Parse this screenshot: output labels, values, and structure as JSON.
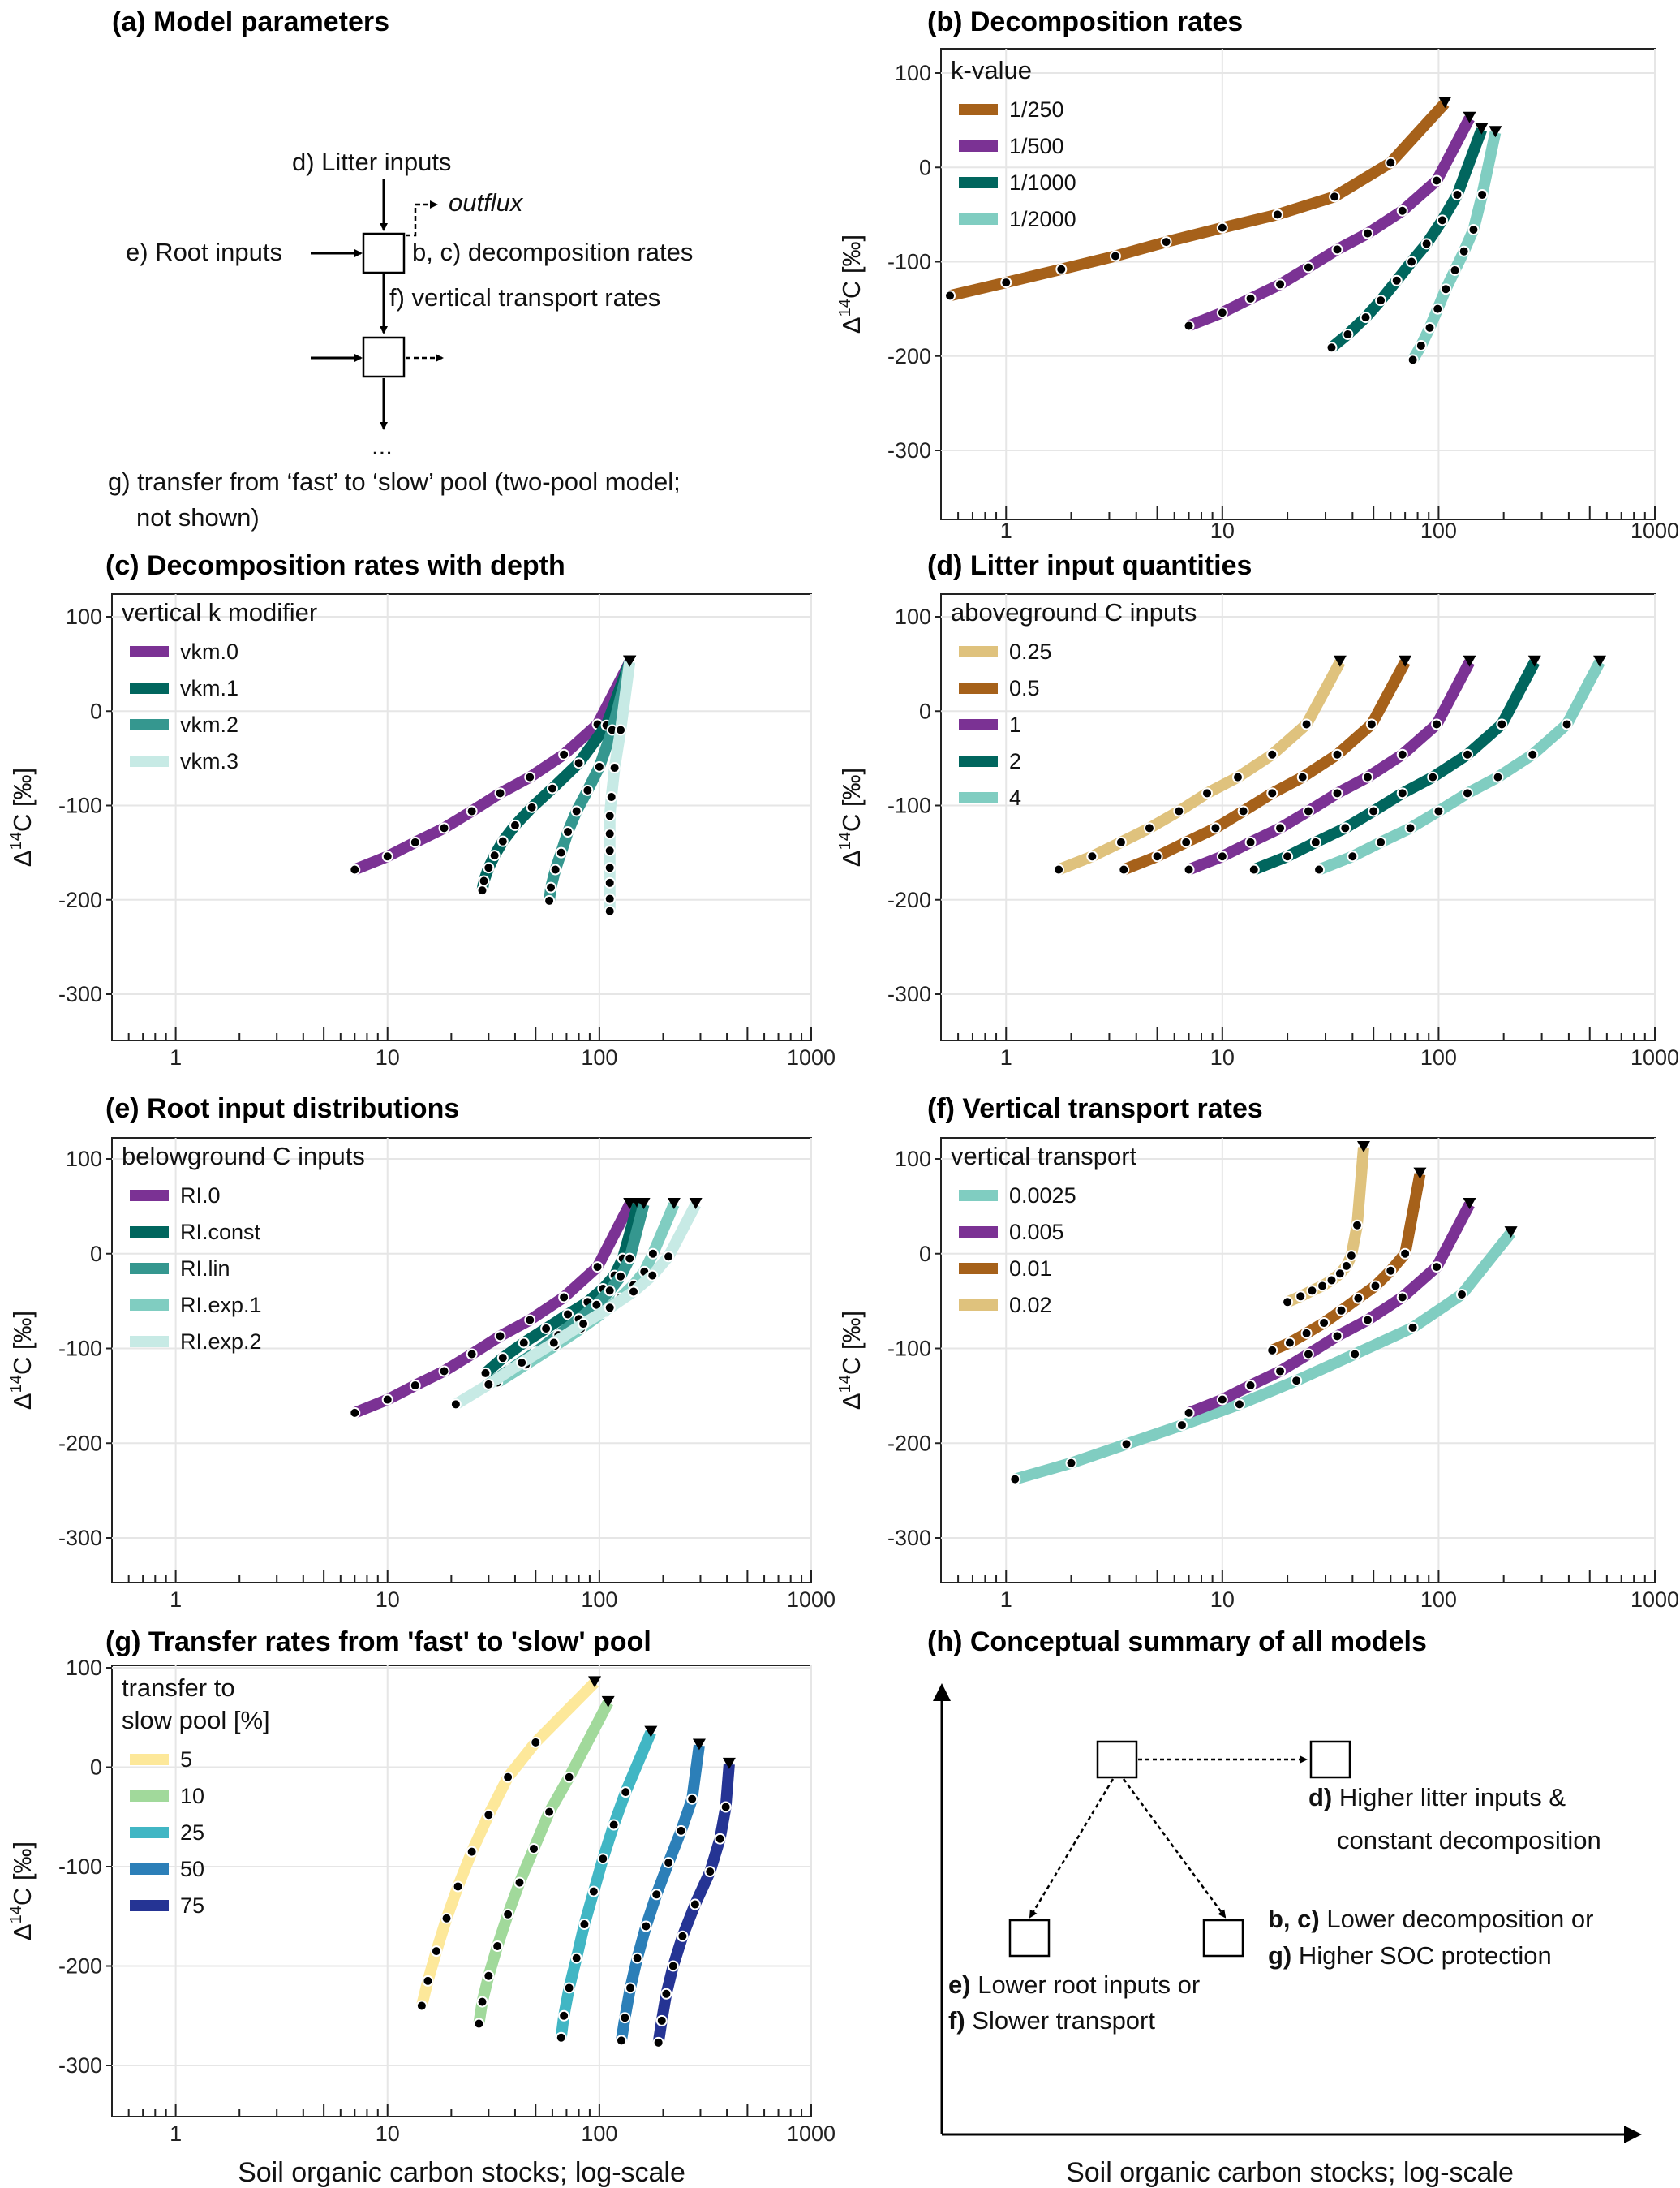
{
  "colors": {
    "brown": "#a6611a",
    "purple": "#7b3294",
    "teal_dark": "#01665e",
    "teal": "#35978f",
    "teal_light": "#80cdc1",
    "very_light": "#c7eae5",
    "tan": "#dfc27d",
    "yellow": "#fde89a",
    "mint": "#a1d99b",
    "cyan": "#41b6c4",
    "blue": "#2c7fb8",
    "navy": "#253494",
    "grid": "#e6e6e6"
  },
  "axis": {
    "xticks": [
      "1",
      "10",
      "100",
      "1000"
    ],
    "yticks": [
      "100",
      "0",
      "-100",
      "-200",
      "-300"
    ],
    "ylabel_main": "Δ",
    "ylabel_sup": "14",
    "ylabel_rest": "C [‰]",
    "xlabel": "Soil organic carbon stocks; log-scale"
  },
  "panel_a": {
    "title": "(a) Model parameters",
    "litter": "d) Litter inputs",
    "outflux": "outflux",
    "root": "e) Root inputs",
    "decomp": "b, c) decomposition rates",
    "transport": "f) vertical transport rates",
    "ellipsis": "...",
    "transfer_1": "g) transfer from ‘fast’ to ‘slow’ pool (two-pool model;",
    "transfer_2": "not shown)"
  },
  "panel_h": {
    "title": "(h) Conceptual summary of all models",
    "d_bold": "d)",
    "d_1": "Higher litter inputs &",
    "d_2": "constant decomposition",
    "bc_bold": "b, c)",
    "bc_text": "Lower decomposition or",
    "g_bold": "g)",
    "g_text": "Higher SOC protection",
    "e_bold": "e)",
    "e_text": "Lower root inputs or",
    "f_bold": "f)",
    "f_text": "Slower transport",
    "xlabel": "Soil organic carbon stocks; log-scale"
  },
  "chart_data": [
    {
      "id": "b",
      "type": "line",
      "title": "(b) Decomposition rates",
      "xlabel": "",
      "ylabel": "Δ14C [‰]",
      "xscale": "log",
      "xlim": [
        0.5,
        1000
      ],
      "ylim": [
        -350,
        110
      ],
      "legend_title": "k-value",
      "legend_placement": "top-left",
      "grid": true,
      "series": [
        {
          "name": "1/250",
          "color": "#a6611a",
          "x": [
            0.55,
            1.0,
            1.8,
            3.2,
            5.5,
            10,
            18,
            33,
            60,
            107
          ],
          "y": [
            -136,
            -122,
            -108,
            -94,
            -79,
            -64,
            -50,
            -31,
            5,
            68
          ]
        },
        {
          "name": "1/500",
          "color": "#7b3294",
          "x": [
            7,
            10,
            13.5,
            18.5,
            25,
            34,
            47,
            68,
            98,
            139
          ],
          "y": [
            -168,
            -154,
            -139,
            -124,
            -106,
            -87,
            -70,
            -46,
            -14,
            52
          ]
        },
        {
          "name": "1/1000",
          "color": "#01665e",
          "x": [
            32,
            38,
            46,
            54,
            64,
            75,
            88,
            104,
            122,
            158
          ],
          "y": [
            -191,
            -177,
            -159,
            -141,
            -120,
            -100,
            -81,
            -56,
            -29,
            40
          ]
        },
        {
          "name": "1/2000",
          "color": "#80cdc1",
          "x": [
            76,
            83,
            91,
            99,
            108,
            119,
            131,
            145,
            159,
            183
          ],
          "y": [
            -204,
            -189,
            -170,
            -150,
            -129,
            -109,
            -89,
            -66,
            -29,
            37
          ]
        }
      ]
    },
    {
      "id": "c",
      "type": "line",
      "title": "(c) Decomposition rates with depth",
      "xlabel": "",
      "ylabel": "Δ14C [‰]",
      "xscale": "log",
      "xlim": [
        0.5,
        1000
      ],
      "ylim": [
        -350,
        110
      ],
      "legend_title": "vertical k modifier",
      "legend_placement": "top-left",
      "grid": true,
      "series": [
        {
          "name": "vkm.0",
          "color": "#7b3294",
          "x": [
            7,
            10,
            13.5,
            18.5,
            25,
            34,
            47,
            68,
            98,
            139
          ],
          "y": [
            -168,
            -154,
            -139,
            -124,
            -106,
            -87,
            -70,
            -46,
            -14,
            52
          ]
        },
        {
          "name": "vkm.1",
          "color": "#01665e",
          "x": [
            28,
            28.5,
            30,
            32,
            35,
            40,
            48,
            60,
            80,
            108,
            139
          ],
          "y": [
            -190,
            -180,
            -166,
            -153,
            -138,
            -121,
            -102,
            -82,
            -55,
            -15,
            52
          ]
        },
        {
          "name": "vkm.2",
          "color": "#35978f",
          "x": [
            58,
            59,
            62,
            66,
            71,
            78,
            88,
            100,
            115,
            139
          ],
          "y": [
            -201,
            -187,
            -168,
            -150,
            -128,
            -106,
            -84,
            -59,
            -20,
            52
          ]
        },
        {
          "name": "vkm.3",
          "color": "#c7eae5",
          "x": [
            112,
            112,
            112,
            112,
            112,
            112,
            112,
            114,
            118,
            126,
            139
          ],
          "y": [
            -212,
            -199,
            -182,
            -166,
            -148,
            -130,
            -111,
            -91,
            -60,
            -20,
            52
          ]
        }
      ]
    },
    {
      "id": "d",
      "type": "line",
      "title": "(d) Litter input quantities",
      "xlabel": "",
      "ylabel": "Δ14C [‰]",
      "xscale": "log",
      "xlim": [
        0.5,
        1000
      ],
      "ylim": [
        -350,
        110
      ],
      "legend_title": "aboveground C inputs",
      "legend_placement": "top-left",
      "grid": true,
      "series": [
        {
          "name": "0.25",
          "color": "#dfc27d",
          "x": [
            1.75,
            2.5,
            3.4,
            4.6,
            6.3,
            8.5,
            11.8,
            17,
            24.5,
            35
          ],
          "y": [
            -168,
            -154,
            -139,
            -124,
            -106,
            -87,
            -70,
            -46,
            -14,
            52
          ]
        },
        {
          "name": "0.5",
          "color": "#a6611a",
          "x": [
            3.5,
            5,
            6.8,
            9.3,
            12.5,
            17,
            23.5,
            34,
            49,
            70
          ],
          "y": [
            -168,
            -154,
            -139,
            -124,
            -106,
            -87,
            -70,
            -46,
            -14,
            52
          ]
        },
        {
          "name": "1",
          "color": "#7b3294",
          "x": [
            7,
            10,
            13.5,
            18.5,
            25,
            34,
            47,
            68,
            98,
            139
          ],
          "y": [
            -168,
            -154,
            -139,
            -124,
            -106,
            -87,
            -70,
            -46,
            -14,
            52
          ]
        },
        {
          "name": "2",
          "color": "#01665e",
          "x": [
            14,
            20,
            27,
            37,
            50,
            68,
            94,
            136,
            196,
            278
          ],
          "y": [
            -168,
            -154,
            -139,
            -124,
            -106,
            -87,
            -70,
            -46,
            -14,
            52
          ]
        },
        {
          "name": "4",
          "color": "#80cdc1",
          "x": [
            28,
            40,
            54,
            74,
            100,
            136,
            188,
            272,
            392,
            556
          ],
          "y": [
            -168,
            -154,
            -139,
            -124,
            -106,
            -87,
            -70,
            -46,
            -14,
            52
          ]
        }
      ]
    },
    {
      "id": "e",
      "type": "line",
      "title": "(e) Root input distributions",
      "xlabel": "",
      "ylabel": "Δ14C [‰]",
      "xscale": "log",
      "xlim": [
        0.5,
        1000
      ],
      "ylim": [
        -350,
        110
      ],
      "legend_title": "belowground C inputs",
      "legend_placement": "top-left",
      "grid": true,
      "series": [
        {
          "name": "RI.0",
          "color": "#7b3294",
          "x": [
            7,
            10,
            13.5,
            18.5,
            25,
            34,
            47,
            68,
            98,
            139
          ],
          "y": [
            -168,
            -154,
            -139,
            -124,
            -106,
            -87,
            -70,
            -46,
            -14,
            52
          ]
        },
        {
          "name": "RI.const",
          "color": "#01665e",
          "x": [
            29,
            35,
            44,
            56,
            71,
            88,
            104,
            118,
            129,
            152
          ],
          "y": [
            -126,
            -110,
            -94,
            -79,
            -64,
            -51,
            -37,
            -23,
            -5,
            52
          ]
        },
        {
          "name": "RI.lin",
          "color": "#35978f",
          "x": [
            29,
            38,
            50,
            64,
            80,
            97,
            112,
            126,
            139,
            162
          ],
          "y": [
            -140,
            -122,
            -104,
            -86,
            -69,
            -54,
            -39,
            -24,
            -5,
            52
          ]
        },
        {
          "name": "RI.exp.1",
          "color": "#80cdc1",
          "x": [
            33,
            45,
            62,
            82,
            103,
            125,
            145,
            163,
            179,
            225
          ],
          "y": [
            -136,
            -117,
            -97,
            -79,
            -63,
            -47,
            -33,
            -19,
            0,
            52
          ]
        },
        {
          "name": "RI.exp.2",
          "color": "#c7eae5",
          "x": [
            21,
            30,
            43,
            61,
            84,
            112,
            145,
            178,
            212,
            285
          ],
          "y": [
            -159,
            -138,
            -115,
            -94,
            -74,
            -57,
            -40,
            -23,
            -3,
            52
          ]
        }
      ]
    },
    {
      "id": "f",
      "type": "line",
      "title": "(f) Vertical transport rates",
      "xlabel": "",
      "ylabel": "Δ14C [‰]",
      "xscale": "log",
      "xlim": [
        0.5,
        1000
      ],
      "ylim": [
        -350,
        110
      ],
      "legend_title": "vertical transport",
      "legend_placement": "top-left",
      "grid": true,
      "series": [
        {
          "name": "0.0025",
          "color": "#80cdc1",
          "x": [
            1.1,
            2.0,
            3.6,
            6.5,
            12,
            22,
            41,
            76,
            128,
            216
          ],
          "y": [
            -238,
            -221,
            -201,
            -181,
            -159,
            -134,
            -106,
            -78,
            -43,
            22
          ]
        },
        {
          "name": "0.005",
          "color": "#7b3294",
          "x": [
            7,
            10,
            13.5,
            18.5,
            25,
            34,
            47,
            68,
            98,
            139
          ],
          "y": [
            -168,
            -154,
            -139,
            -124,
            -106,
            -87,
            -70,
            -46,
            -14,
            52
          ]
        },
        {
          "name": "0.01",
          "color": "#a6611a",
          "x": [
            17,
            20.5,
            24.5,
            29.5,
            35.5,
            42.5,
            51,
            60,
            70,
            82
          ],
          "y": [
            -102,
            -94,
            -84,
            -73,
            -60,
            -47,
            -34,
            -18,
            0,
            84
          ]
        },
        {
          "name": "0.02",
          "color": "#dfc27d",
          "x": [
            20,
            23,
            26,
            29,
            32,
            35,
            37.5,
            39.5,
            42,
            45
          ],
          "y": [
            -51,
            -45,
            -39,
            -34,
            -28,
            -21,
            -13,
            -2,
            30,
            112
          ]
        }
      ]
    },
    {
      "id": "g",
      "type": "line",
      "title": "(g) Transfer rates from 'fast' to 'slow' pool",
      "xlabel": "Soil organic carbon stocks; log-scale",
      "ylabel": "Δ14C [‰]",
      "xscale": "log",
      "xlim": [
        0.5,
        1000
      ],
      "ylim": [
        -350,
        100
      ],
      "legend_title": "transfer to slow pool [%]",
      "legend_placement": "top-left",
      "grid": true,
      "series": [
        {
          "name": "5",
          "color": "#fde89a",
          "x": [
            14.5,
            15.5,
            17,
            19,
            21.5,
            25,
            30,
            37,
            50,
            95
          ],
          "y": [
            -240,
            -215,
            -185,
            -152,
            -120,
            -85,
            -48,
            -10,
            25,
            85
          ]
        },
        {
          "name": "10",
          "color": "#a1d99b",
          "x": [
            27,
            28,
            30,
            33,
            37,
            42,
            49,
            58,
            72,
            110
          ],
          "y": [
            -258,
            -236,
            -210,
            -180,
            -148,
            -116,
            -82,
            -45,
            -10,
            65
          ]
        },
        {
          "name": "25",
          "color": "#41b6c4",
          "x": [
            66,
            68,
            72,
            78,
            85,
            94,
            104,
            117,
            133,
            175
          ],
          "y": [
            -272,
            -250,
            -222,
            -192,
            -158,
            -125,
            -92,
            -58,
            -25,
            35
          ]
        },
        {
          "name": "50",
          "color": "#2c7fb8",
          "x": [
            127,
            132,
            140,
            151,
            166,
            186,
            212,
            243,
            274,
            296
          ],
          "y": [
            -275,
            -252,
            -222,
            -192,
            -160,
            -128,
            -96,
            -64,
            -32,
            22
          ]
        },
        {
          "name": "75",
          "color": "#253494",
          "x": [
            190,
            197,
            207,
            223,
            247,
            283,
            333,
            371,
            395,
            410
          ],
          "y": [
            -277,
            -255,
            -228,
            -200,
            -170,
            -138,
            -105,
            -72,
            -40,
            3
          ]
        }
      ]
    }
  ]
}
